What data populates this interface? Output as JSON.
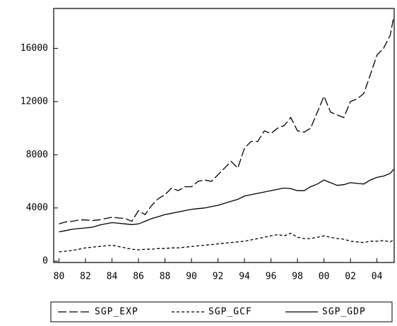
{
  "chart_data": {
    "type": "line",
    "x": [
      1980,
      1980.5,
      1981,
      1981.5,
      1982,
      1982.5,
      1983,
      1983.5,
      1984,
      1984.5,
      1985,
      1985.5,
      1986,
      1986.5,
      1987,
      1987.5,
      1988,
      1988.5,
      1989,
      1989.5,
      1990,
      1990.5,
      1991,
      1991.5,
      1992,
      1992.5,
      1993,
      1993.5,
      1994,
      1994.5,
      1995,
      1995.5,
      1996,
      1996.5,
      1997,
      1997.5,
      1998,
      1998.5,
      1999,
      1999.5,
      2000,
      2000.5,
      2001,
      2001.5,
      2002,
      2002.5,
      2003,
      2003.5,
      2004,
      2004.5,
      2005,
      2005.25
    ],
    "series": [
      {
        "name": "SGP_EXP",
        "color": "#000000",
        "line_style": "long-dash",
        "values": [
          2800,
          2950,
          3000,
          3100,
          3100,
          3050,
          3100,
          3200,
          3300,
          3250,
          3200,
          3000,
          3800,
          3500,
          4200,
          4700,
          5000,
          5500,
          5300,
          5600,
          5600,
          6000,
          6100,
          6000,
          6500,
          7000,
          7500,
          7000,
          8500,
          9000,
          9000,
          9800,
          9600,
          10000,
          10200,
          10800,
          9800,
          9700,
          10000,
          11200,
          12400,
          11200,
          11000,
          10800,
          12000,
          12200,
          12600,
          14000,
          15500,
          16000,
          17000,
          18300
        ]
      },
      {
        "name": "SGP_GCF",
        "color": "#000000",
        "line_style": "short-dash",
        "values": [
          700,
          750,
          800,
          900,
          1000,
          1050,
          1100,
          1150,
          1200,
          1100,
          1000,
          900,
          850,
          900,
          900,
          950,
          950,
          1000,
          1000,
          1050,
          1100,
          1150,
          1200,
          1250,
          1300,
          1350,
          1400,
          1450,
          1500,
          1600,
          1700,
          1800,
          1900,
          2000,
          1900,
          2100,
          1800,
          1700,
          1700,
          1800,
          1900,
          1800,
          1700,
          1650,
          1500,
          1450,
          1400,
          1500,
          1500,
          1550,
          1450,
          1600
        ]
      },
      {
        "name": "SGP_GDP",
        "color": "#000000",
        "line_style": "solid",
        "values": [
          2200,
          2300,
          2400,
          2450,
          2500,
          2550,
          2700,
          2800,
          2900,
          2850,
          2800,
          2750,
          2800,
          3000,
          3200,
          3350,
          3500,
          3600,
          3700,
          3800,
          3900,
          3950,
          4000,
          4100,
          4200,
          4350,
          4500,
          4650,
          4900,
          5000,
          5100,
          5200,
          5300,
          5400,
          5500,
          5450,
          5300,
          5300,
          5600,
          5800,
          6100,
          5900,
          5700,
          5750,
          5900,
          5850,
          5800,
          6100,
          6300,
          6400,
          6600,
          6900
        ]
      }
    ],
    "xlim": [
      1979.6,
      2005.3
    ],
    "xticks": [
      {
        "value": 1980,
        "label": "80"
      },
      {
        "value": 1982,
        "label": "82"
      },
      {
        "value": 1984,
        "label": "84"
      },
      {
        "value": 1986,
        "label": "86"
      },
      {
        "value": 1988,
        "label": "88"
      },
      {
        "value": 1990,
        "label": "90"
      },
      {
        "value": 1992,
        "label": "92"
      },
      {
        "value": 1994,
        "label": "94"
      },
      {
        "value": 1996,
        "label": "96"
      },
      {
        "value": 1998,
        "label": "98"
      },
      {
        "value": 2000,
        "label": "00"
      },
      {
        "value": 2002,
        "label": "02"
      },
      {
        "value": 2004,
        "label": "04"
      }
    ],
    "ylim": [
      -100,
      19000
    ],
    "yticks": [
      0,
      4000,
      8000,
      12000,
      16000
    ],
    "legend": "bottom"
  }
}
